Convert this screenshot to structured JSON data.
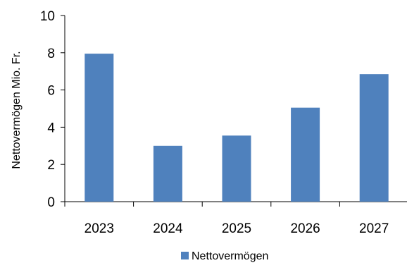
{
  "chart_data": {
    "type": "bar",
    "categories": [
      "2023",
      "2024",
      "2025",
      "2026",
      "2027"
    ],
    "series": [
      {
        "name": "Nettovermögen",
        "values": [
          7.95,
          3.0,
          3.55,
          5.05,
          6.85
        ],
        "color": "#4f81bd"
      }
    ],
    "title": "",
    "xlabel": "",
    "ylabel": "Nettovermögen Mio. Fr.",
    "ylim": [
      0,
      10
    ],
    "yticks": [
      "0",
      "2",
      "4",
      "6",
      "8",
      "10"
    ],
    "grid": false,
    "legend": "bottom"
  }
}
